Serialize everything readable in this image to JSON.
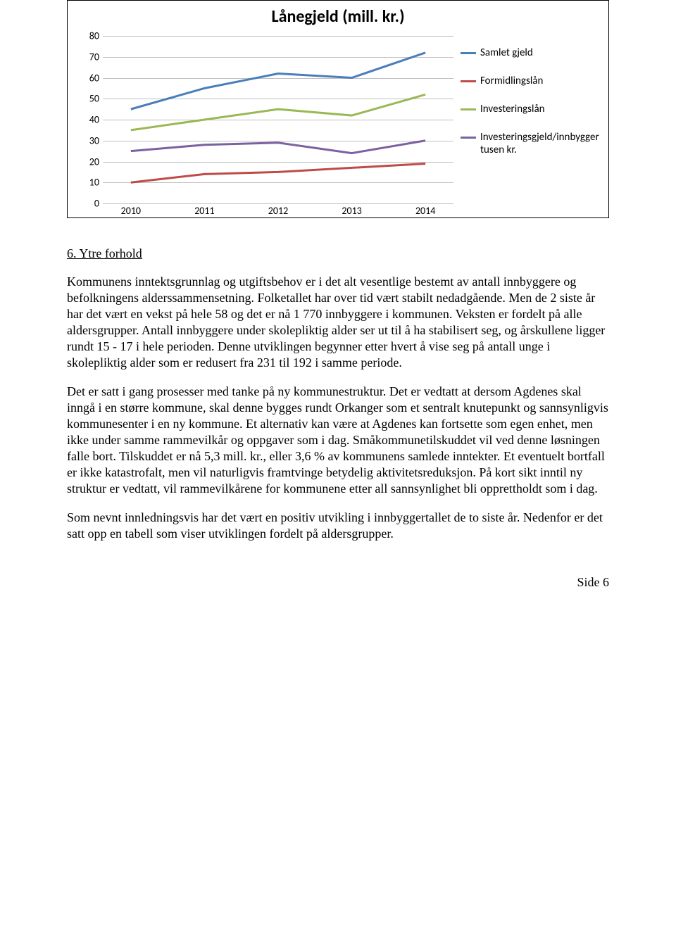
{
  "chart": {
    "type": "line",
    "title": "Lånegjeld (mill. kr.)",
    "title_fontsize": 24,
    "background_color": "#ffffff",
    "grid_color": "#c0c0c0",
    "ylim": [
      0,
      80
    ],
    "ytick_step": 10,
    "yticks": [
      0,
      10,
      20,
      30,
      40,
      50,
      60,
      70,
      80
    ],
    "xlabels": [
      "2010",
      "2011",
      "2012",
      "2013",
      "2014"
    ],
    "series": [
      {
        "name": "Samlet gjeld",
        "color": "#4a7ebb",
        "values": [
          45,
          55,
          62,
          60,
          72
        ],
        "line_width": 3
      },
      {
        "name": "Formidlingslån",
        "color": "#be4b48",
        "values": [
          10,
          14,
          15,
          17,
          19
        ],
        "line_width": 3
      },
      {
        "name": "Investeringslån",
        "color": "#98b954",
        "values": [
          35,
          40,
          45,
          42,
          52
        ],
        "line_width": 3
      },
      {
        "name": "Investeringsgjeld/innbygger tusen kr.",
        "color": "#7d60a0",
        "values": [
          25,
          28,
          29,
          24,
          30
        ],
        "line_width": 3
      }
    ],
    "label_fontsize": 14
  },
  "heading": "6. Ytre forhold",
  "paragraphs": {
    "p1": "Kommunens inntektsgrunnlag og utgiftsbehov er i det alt vesentlige bestemt av antall innbyggere og befolkningens alderssammensetning. Folketallet har over tid vært stabilt nedadgående. Men de 2 siste år har det vært en vekst på hele 58 og det er nå 1 770 innbyggere i kommunen. Veksten er fordelt på alle aldersgrupper. Antall innbyggere under skolepliktig alder ser ut til å ha stabilisert seg, og årskullene ligger rundt 15 - 17 i hele perioden. Denne utviklingen begynner etter hvert å vise seg på antall unge i skolepliktig alder som er redusert fra 231 til 192 i samme periode.",
    "p2": "Det er satt i gang prosesser med tanke på ny kommunestruktur. Det er vedtatt at dersom Agdenes skal inngå i en større kommune, skal denne bygges rundt Orkanger som et sentralt knutepunkt og sannsynligvis kommunesenter i en ny kommune. Et alternativ kan være at Agdenes kan fortsette som egen enhet, men ikke under samme rammevilkår og oppgaver som i dag. Småkommunetilskuddet vil ved denne løsningen falle bort. Tilskuddet er nå 5,3 mill. kr., eller 3,6 % av kommunens samlede inntekter. Et eventuelt bortfall er ikke katastrofalt, men vil naturligvis framtvinge betydelig aktivitetsreduksjon. På kort sikt inntil ny struktur er vedtatt, vil rammevilkårene for kommunene etter all sannsynlighet bli opprettholdt som i dag.",
    "p3": "Som nevnt innledningsvis har det vært en positiv utvikling i innbyggertallet de to siste år. Nedenfor er det satt opp en tabell som viser utviklingen fordelt på aldersgrupper."
  },
  "footer": "Side 6"
}
